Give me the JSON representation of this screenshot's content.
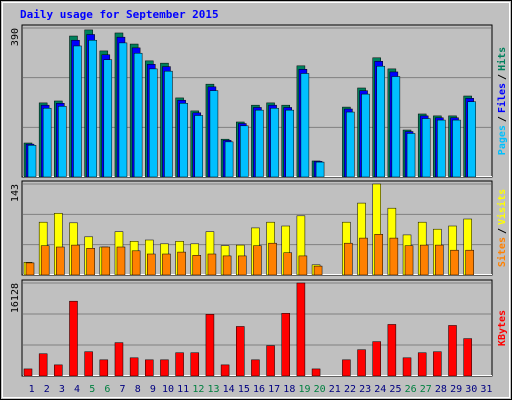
{
  "chart_data": [
    {
      "type": "bar",
      "title": "Daily usage for September 2015",
      "ylim": [
        0,
        390
      ],
      "yticks": [
        390
      ],
      "legend_separator": "/",
      "series": [
        {
          "name": "Hits",
          "color": "#00805c",
          "values": [
            89,
            194,
            199,
            369,
            385,
            330,
            377,
            348,
            304,
            298,
            207,
            173,
            243,
            99,
            144,
            188,
            194,
            188,
            291,
            42,
            null,
            183,
            233,
            312,
            283,
            123,
            165,
            160,
            160,
            212,
            null
          ]
        },
        {
          "name": "Files",
          "color": "#0000ff",
          "values": [
            86,
            188,
            193,
            358,
            373,
            320,
            366,
            338,
            295,
            289,
            201,
            168,
            236,
            96,
            140,
            182,
            188,
            182,
            282,
            41,
            null,
            178,
            226,
            303,
            275,
            119,
            160,
            155,
            155,
            206,
            null
          ]
        },
        {
          "name": "Pages",
          "color": "#00c0ff",
          "values": [
            83,
            180,
            185,
            343,
            358,
            307,
            351,
            324,
            283,
            277,
            193,
            161,
            226,
            92,
            134,
            175,
            180,
            175,
            271,
            39,
            null,
            170,
            217,
            290,
            263,
            114,
            153,
            149,
            149,
            197,
            null
          ]
        }
      ]
    },
    {
      "type": "bar",
      "ylim": [
        0,
        143
      ],
      "yticks": [
        143
      ],
      "legend_separator": "/",
      "series": [
        {
          "name": "Visits",
          "color": "#ffff00",
          "values": [
            20,
            83,
            97,
            82,
            60,
            44,
            68,
            53,
            55,
            49,
            53,
            49,
            68,
            46,
            47,
            74,
            83,
            77,
            93,
            16,
            null,
            83,
            113,
            143,
            105,
            63,
            83,
            72,
            77,
            88,
            null
          ]
        },
        {
          "name": "Sites",
          "color": "#ff8000",
          "values": [
            19,
            46,
            44,
            47,
            42,
            44,
            44,
            38,
            33,
            33,
            36,
            31,
            33,
            30,
            30,
            46,
            50,
            35,
            30,
            14,
            null,
            50,
            58,
            64,
            58,
            46,
            47,
            47,
            39,
            39,
            null
          ]
        }
      ]
    },
    {
      "type": "bar",
      "ylim": [
        0,
        16128
      ],
      "yticks": [
        16128
      ],
      "legend_separator": "/",
      "categories": [
        "1",
        "2",
        "3",
        "4",
        "5",
        "6",
        "7",
        "8",
        "9",
        "10",
        "11",
        "12",
        "13",
        "14",
        "15",
        "16",
        "17",
        "18",
        "19",
        "20",
        "21",
        "22",
        "23",
        "24",
        "25",
        "26",
        "27",
        "28",
        "29",
        "30",
        "31"
      ],
      "category_colors": [
        "#000080",
        "#000080",
        "#000080",
        "#000080",
        "#008040",
        "#008040",
        "#000080",
        "#000080",
        "#000080",
        "#000080",
        "#000080",
        "#008040",
        "#008040",
        "#000080",
        "#000080",
        "#000080",
        "#000080",
        "#000080",
        "#008040",
        "#008040",
        "#000080",
        "#000080",
        "#000080",
        "#000080",
        "#000080",
        "#008040",
        "#008040",
        "#000080",
        "#000080",
        "#000080",
        "#000080"
      ],
      "series": [
        {
          "name": "KBytes",
          "color": "#ff0000",
          "values": [
            1227,
            3857,
            1928,
            12973,
            4207,
            2805,
            5785,
            3155,
            2805,
            2805,
            4032,
            4032,
            10694,
            1928,
            8590,
            2805,
            5259,
            10869,
            16128,
            1227,
            null,
            2805,
            4558,
            5960,
            8941,
            3155,
            4032,
            4207,
            8765,
            6486,
            null
          ]
        }
      ]
    }
  ]
}
